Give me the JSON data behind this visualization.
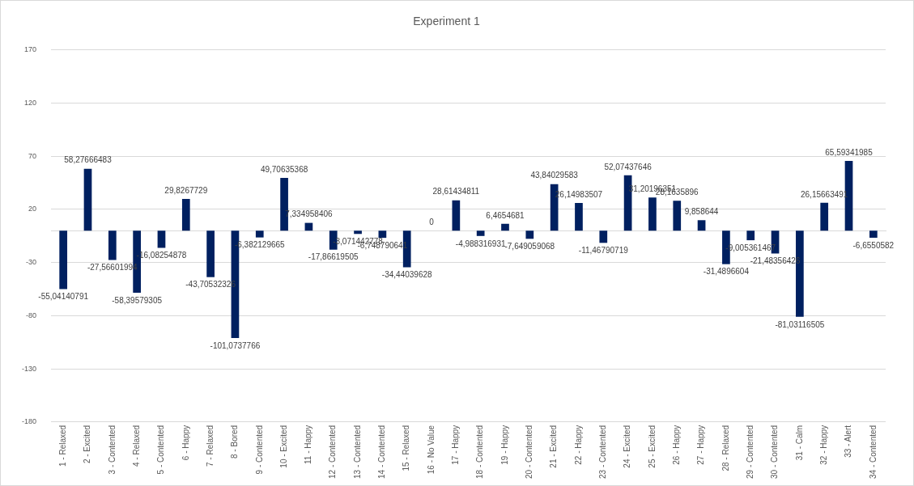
{
  "chart_data": {
    "type": "bar",
    "title": "Experiment 1",
    "categories": [
      "1 - Relaxed",
      "2 - Excited",
      "3 - Contented",
      "4 - Relaxed",
      "5 - Contented",
      "6 - Happy",
      "7 - Relaxed",
      "8 - Bored",
      "9 - Contented",
      "10 - Excited",
      "11 - Happy",
      "12 - Contented",
      "13 - Contented",
      "14 - Contented",
      "15 - Relaxed",
      "16 - No Value",
      "17 - Happy",
      "18 - Contented",
      "19 - Happy",
      "20 - Contented",
      "21 - Excited",
      "22 - Happy",
      "23 - Contented",
      "24 - Excited",
      "25 - Excited",
      "26 - Happy",
      "27 - Happy",
      "28 - Relaxed",
      "29 - Contented",
      "30 - Contented",
      "31 - Calm",
      "32 - Happy",
      "33 - Alert",
      "34 - Contented"
    ],
    "values": [
      -55.04140791,
      58.27666483,
      -27.56601994,
      -58.39579305,
      -16.08254878,
      29.8267729,
      -43.70532326,
      -101.0737766,
      -6.382129665,
      49.70635368,
      7.334958406,
      -17.86619505,
      -3.071442778,
      -6.748790641,
      -34.44039628,
      0,
      28.61434811,
      -4.988316931,
      6.4654681,
      -7.649059068,
      43.84029583,
      26.14983507,
      -11.46790719,
      52.07437646,
      31.20196351,
      28.1635896,
      9.858644,
      -31.4896604,
      -9.005361467,
      -21.48356426,
      -81.03116505,
      26.15663491,
      65.59341985,
      -6.6550582
    ],
    "value_labels": [
      "-55,04140791",
      "58,27666483",
      "-27,56601994",
      "-58,39579305",
      "-16,08254878",
      "29,8267729",
      "-43,70532326",
      "-101,0737766",
      "-6,382129665",
      "49,70635368",
      "7,334958406",
      "-17,86619505",
      "-3,071442778",
      "-6,748790641",
      "-34,44039628",
      "0",
      "28,61434811",
      "-4,988316931",
      "6,4654681",
      "-7,649059068",
      "43,84029583",
      "26,14983507",
      "-11,46790719",
      "52,07437646",
      "31,20196351",
      "28,1635896",
      "9,858644",
      "-31,4896604",
      "-9,005361467",
      "-21,48356426",
      "-81,03116505",
      "26,15663491",
      "65,59341985",
      "-6,6550582"
    ],
    "color": "#002060",
    "ylim": [
      -180,
      170
    ],
    "yticks": [
      -180,
      -130,
      -80,
      -30,
      20,
      70,
      120,
      170
    ],
    "grid": "y"
  }
}
